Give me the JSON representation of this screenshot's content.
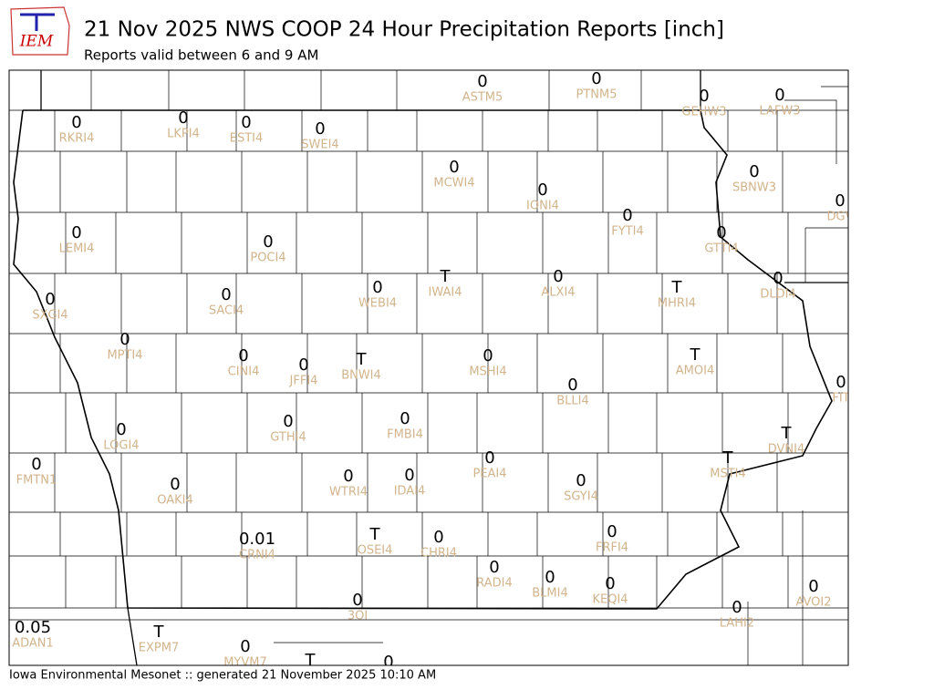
{
  "header": {
    "logo": "IEM",
    "title": "21 Nov 2025 NWS COOP 24 Hour Precipitation Reports [inch]",
    "subtitle": "Reports valid between 6 and 9 AM"
  },
  "footer": "Iowa Environmental Mesonet :: generated 21 November 2025 10:10 AM",
  "stations": [
    {
      "id": "ASTM5",
      "value": "0"
    },
    {
      "id": "PTNM5",
      "value": "0"
    },
    {
      "id": "GEHW3",
      "value": "0"
    },
    {
      "id": "LAFW3",
      "value": "0"
    },
    {
      "id": "RKRI4",
      "value": "0"
    },
    {
      "id": "LKPI4",
      "value": "0"
    },
    {
      "id": "ESTI4",
      "value": "0"
    },
    {
      "id": "SWEI4",
      "value": "0"
    },
    {
      "id": "MCWI4",
      "value": "0"
    },
    {
      "id": "SBNW3",
      "value": "0"
    },
    {
      "id": "IONI4",
      "value": "0"
    },
    {
      "id": "DGV",
      "value": "0"
    },
    {
      "id": "FYTI4",
      "value": "0"
    },
    {
      "id": "GTTI4",
      "value": "0"
    },
    {
      "id": "LEMI4",
      "value": "0"
    },
    {
      "id": "POCI4",
      "value": "0"
    },
    {
      "id": "IWAI4",
      "value": "T"
    },
    {
      "id": "ALXI4",
      "value": "0"
    },
    {
      "id": "WEBI4",
      "value": "0"
    },
    {
      "id": "MHRI4",
      "value": "T"
    },
    {
      "id": "DLDI4",
      "value": "0"
    },
    {
      "id": "SXGI4",
      "value": "0"
    },
    {
      "id": "SACI4",
      "value": "0"
    },
    {
      "id": "MPTI4",
      "value": "0"
    },
    {
      "id": "CINI4",
      "value": "0"
    },
    {
      "id": "JFFI4",
      "value": "0"
    },
    {
      "id": "BNWI4",
      "value": "T"
    },
    {
      "id": "MSHI4",
      "value": "0"
    },
    {
      "id": "AMOI4",
      "value": "T"
    },
    {
      "id": "FIT",
      "value": "0"
    },
    {
      "id": "BLLI4",
      "value": "0"
    },
    {
      "id": "LOGI4",
      "value": "0"
    },
    {
      "id": "GTHI4",
      "value": "0"
    },
    {
      "id": "FMBI4",
      "value": "0"
    },
    {
      "id": "DVNI4",
      "value": "T"
    },
    {
      "id": "FMTN1",
      "value": "0"
    },
    {
      "id": "PEAI4",
      "value": "0"
    },
    {
      "id": "MSTI4",
      "value": "T"
    },
    {
      "id": "OAKI4",
      "value": "0"
    },
    {
      "id": "WTRI4",
      "value": "0"
    },
    {
      "id": "IDAI4",
      "value": "0"
    },
    {
      "id": "SGYI4",
      "value": "0"
    },
    {
      "id": "CRNI4",
      "value": "0.01"
    },
    {
      "id": "OSEI4",
      "value": "T"
    },
    {
      "id": "CHRI4",
      "value": "0"
    },
    {
      "id": "FRFI4",
      "value": "0"
    },
    {
      "id": "RADI4",
      "value": "0"
    },
    {
      "id": "BLMI4",
      "value": "0"
    },
    {
      "id": "KEQI4",
      "value": "0"
    },
    {
      "id": "AVOI2",
      "value": "0"
    },
    {
      "id": "3OI",
      "value": "0"
    },
    {
      "id": "LAHI2",
      "value": "0"
    },
    {
      "id": "ADAN1",
      "value": "0.05"
    },
    {
      "id": "EXPM7",
      "value": "T"
    },
    {
      "id": "MYVM7",
      "value": "0"
    },
    {
      "id": null,
      "value": "T"
    },
    {
      "id": null,
      "value": "0"
    }
  ]
}
